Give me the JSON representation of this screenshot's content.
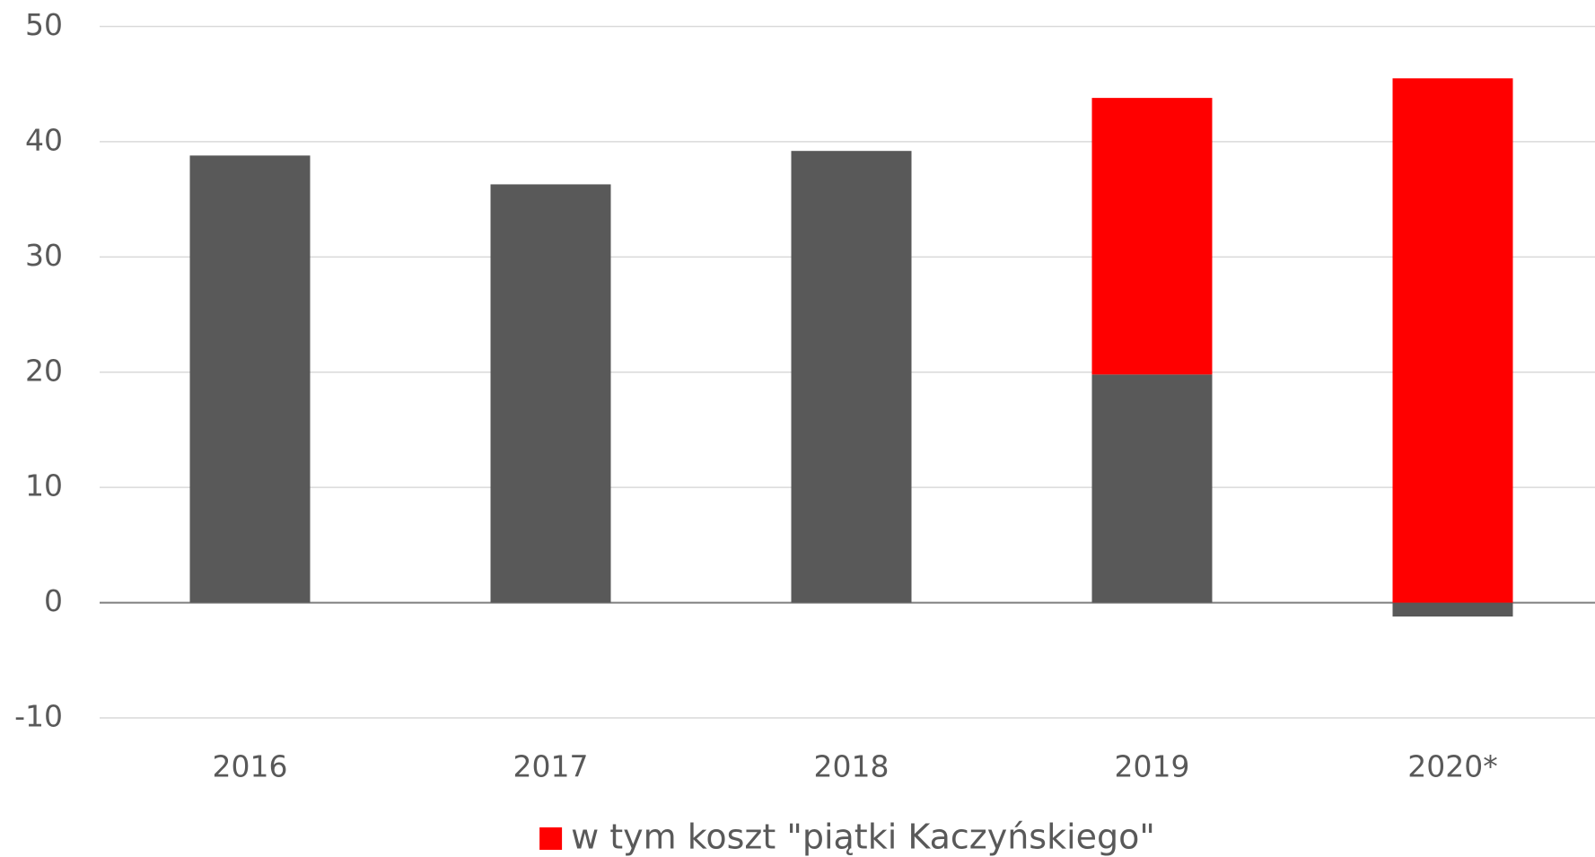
{
  "chart_data": {
    "type": "bar",
    "stacked": true,
    "categories": [
      "2016",
      "2017",
      "2018",
      "2019",
      "2020*"
    ],
    "series": [
      {
        "color": "#595959",
        "values": [
          38.8,
          36.3,
          39.2,
          19.8,
          -1.2
        ]
      },
      {
        "name": "w tym koszt \"piątki Kaczyńskiego\"",
        "color": "#ff0000",
        "values": [
          null,
          null,
          null,
          24.0,
          45.5
        ]
      }
    ],
    "ylim": [
      -10,
      50
    ],
    "yticks": [
      -10,
      0,
      10,
      20,
      30,
      40,
      50
    ],
    "grid": true,
    "legend": "bottom"
  }
}
